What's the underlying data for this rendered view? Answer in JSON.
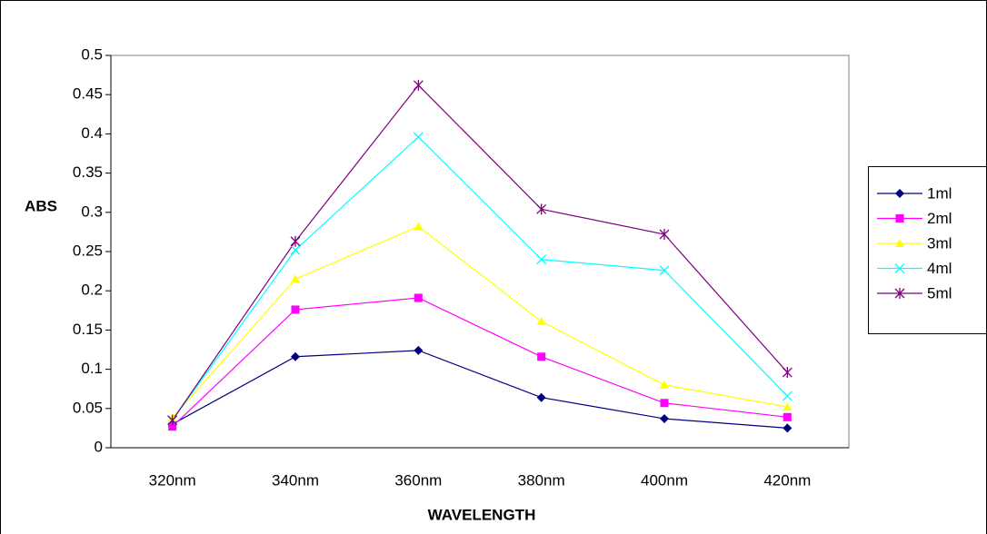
{
  "chart_data": {
    "type": "line",
    "y_label": "ABS",
    "x_label": "WAVELENGTH",
    "categories": [
      "320nm",
      "340nm",
      "360nm",
      "380nm",
      "400nm",
      "420nm"
    ],
    "ylim": [
      0,
      0.5
    ],
    "yticks": [
      0,
      0.05,
      0.1,
      0.15,
      0.2,
      0.25,
      0.3,
      0.35,
      0.4,
      0.45,
      0.5
    ],
    "legend": "right",
    "series": [
      {
        "name": "1ml",
        "color": "#000080",
        "marker": "diamond",
        "values": [
          0.03,
          0.116,
          0.124,
          0.064,
          0.037,
          0.025
        ]
      },
      {
        "name": "2ml",
        "color": "#ff00ff",
        "marker": "square",
        "values": [
          0.027,
          0.176,
          0.191,
          0.116,
          0.057,
          0.039
        ]
      },
      {
        "name": "3ml",
        "color": "#ffff00",
        "marker": "triangle",
        "values": [
          0.038,
          0.215,
          0.282,
          0.161,
          0.08,
          0.052
        ]
      },
      {
        "name": "4ml",
        "color": "#00ffff",
        "marker": "x",
        "values": [
          0.035,
          0.252,
          0.396,
          0.24,
          0.226,
          0.066
        ]
      },
      {
        "name": "5ml",
        "color": "#800080",
        "marker": "star",
        "values": [
          0.035,
          0.263,
          0.462,
          0.304,
          0.272,
          0.096
        ]
      }
    ]
  }
}
